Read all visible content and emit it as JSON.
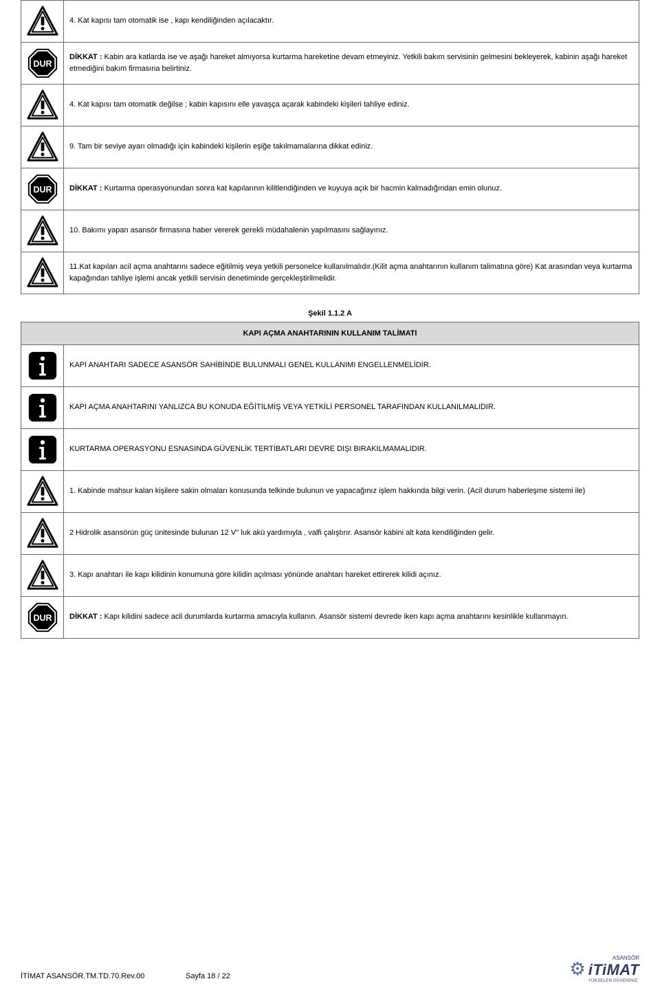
{
  "colors": {
    "border": "#6b6b6b",
    "headerBg": "#d9d9d9",
    "text": "#000000",
    "logoColor": "#323a5e"
  },
  "section1": {
    "rows": [
      {
        "icon": "warning",
        "text": "4. Kat kapısı tam otomatik ise , kapı kendiliğinden açılacaktır."
      },
      {
        "icon": "stop",
        "boldPrefix": "DİKKAT :",
        "text": " Kabin ara katlarda ise ve aşağı hareket almıyorsa kurtarma hareketine devam etmeyiniz. Yetkili bakım servisinin gelmesini bekleyerek, kabinin aşağı hareket etmediğini bakım firmasına belirtiniz."
      },
      {
        "icon": "warning",
        "text": "4.  Kat kapısı tam otomatik değilse ; kabin kapısını elle yavaşça açarak kabindeki kişileri tahliye ediniz."
      },
      {
        "icon": "warning",
        "text": "9.   Tam bir seviye ayarı olmadığı için kabindeki kişilerin eşiğe takılmamalarına dikkat ediniz."
      },
      {
        "icon": "stop",
        "boldPrefix": "DİKKAT :",
        "text": " Kurtarma operasyonundan sonra kat kapılarının kilitlendiğinden ve kuyuya açık bir hacmin kalmadığından emin olunuz."
      },
      {
        "icon": "warning",
        "text": "10.   Bakımı yapan asansör firmasına haber vererek gerekli müdahalenin yapılmasını sağlayınız."
      },
      {
        "icon": "warning",
        "text": "11.Kat kapıları acil açma anahtarını sadece eğitilmiş veya yetkili personelce kullanılmalıdır.(Kilit açma anahtarının kullanım talimatına göre) Kat arasından veya kurtarma kapağından tahliye işlemi ancak yetkili servisin denetiminde gerçekleştirilmelidir."
      }
    ]
  },
  "figureLabel": "Şekil 1.1.2 A",
  "section2": {
    "header": "KAPI AÇMA ANAHTARININ KULLANIM TALİMATI",
    "rows": [
      {
        "icon": "info",
        "text": "KAPI ANAHTARI SADECE ASANSÖR SAHİBİNDE BULUNMALI GENEL KULLANIMI ENGELLENMELİDİR."
      },
      {
        "icon": "info",
        "text": "KAPI AÇMA ANAHTARINI YANLIZCA BU KONUDA EĞİTİLMİŞ VEYA YETKİLİ PERSONEL TARAFINDAN KULLANILMALIDIR."
      },
      {
        "icon": "info",
        "text": "KURTARMA OPERASYONU ESNASINDA GÜVENLİK TERTİBATLARI DEVRE DIŞI BIRAKILMAMALIDIR."
      },
      {
        "icon": "warning",
        "text": " 1. Kabinde mahsur kalan kişilere sakin olmaları konusunda telkinde bulunun   ve yapacağınız işlem hakkında bilgi verin. (Acil durum  haberleşme sistemi ile)"
      },
      {
        "icon": "warning",
        "text": "2 Hidrolik asansörün güç ünitesinde bulunan 12 V'' luk akü yardımıyla , valfi çalıştırır.  Asansör kabini alt kata kendiliğinden gelir."
      },
      {
        "icon": "warning",
        "text": "3. Kapı anahtarı ile kapı kilidinin konumuna göre kilidin açılması yönünde anahtarı hareket ettirerek kilidi açınız."
      },
      {
        "icon": "stop",
        "boldPrefix": "DİKKAT :",
        "text": " Kapı kilidini sadece acil durumlarda kurtarma amacıyla kullanın. Asansör sistemi devrede iken kapı açma anahtarını kesinlikle kullanmayın."
      }
    ]
  },
  "footer": {
    "docRef": "İTİMAT ASANSÖR.TM.TD.70.Rev.00",
    "pageRef": "Sayfa 18 / 22",
    "logoTop": "ASANSÖR",
    "logoMain": "iTiMAT",
    "logoSub": "YÜKSELEN GÜVENİNİZ"
  },
  "icons": {
    "stopLabel": "DUR"
  }
}
